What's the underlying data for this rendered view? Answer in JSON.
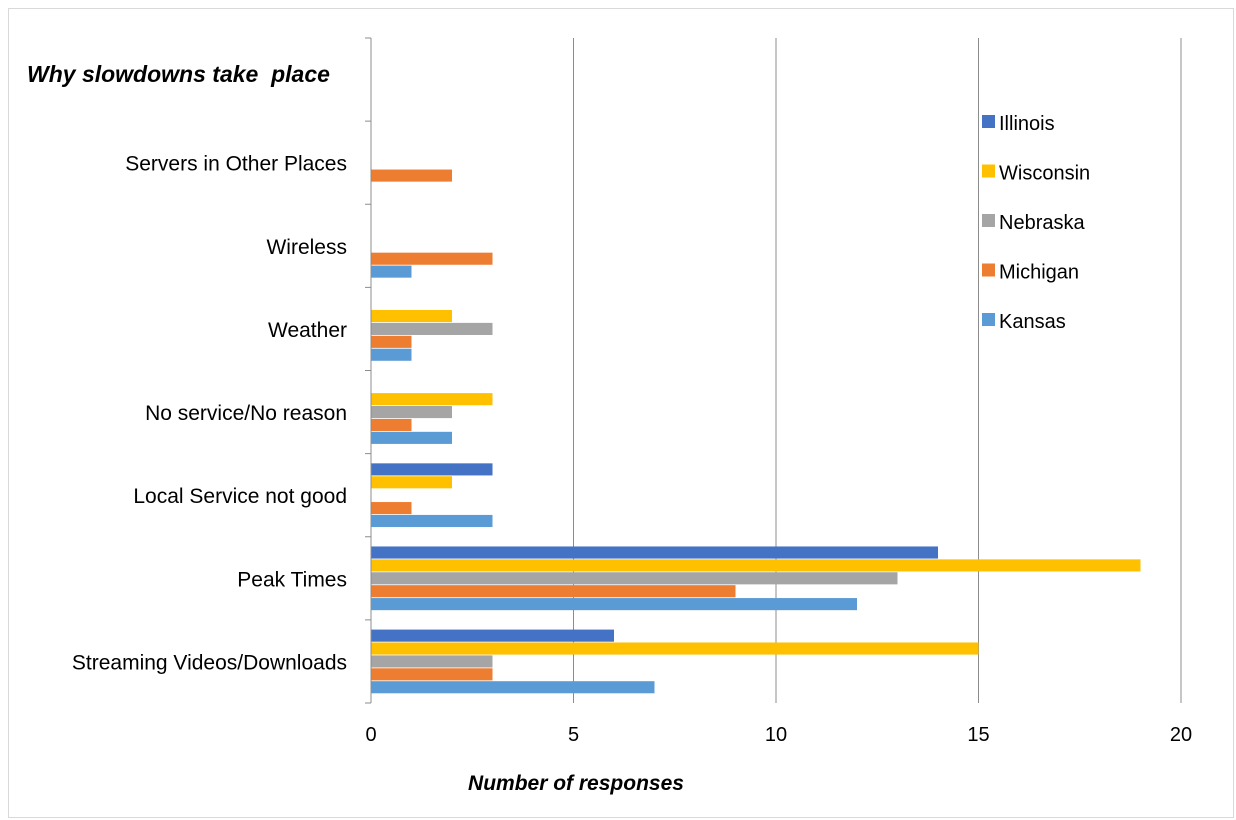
{
  "chart_data": {
    "type": "bar",
    "orientation": "horizontal",
    "title": "Why slowdowns take  place",
    "xlabel": "Number of responses",
    "ylabel": "",
    "xlim": [
      0,
      20
    ],
    "x_ticks": [
      "0",
      "5",
      "10",
      "15",
      "20"
    ],
    "grid": "vertical major gridlines",
    "legend_position": "right",
    "categories": [
      "Streaming Videos/Downloads",
      "Peak Times",
      "Local Service not good",
      "No service/No reason",
      "Weather",
      "Wireless",
      "Servers in Other Places"
    ],
    "series": [
      {
        "name": "Kansas",
        "color": "#5B9BD5",
        "values": [
          7,
          12,
          3,
          2,
          1,
          1,
          0
        ]
      },
      {
        "name": "Michigan",
        "color": "#ED7D31",
        "values": [
          3,
          9,
          1,
          1,
          1,
          3,
          2
        ]
      },
      {
        "name": "Nebraska",
        "color": "#A5A5A5",
        "values": [
          3,
          13,
          0,
          2,
          3,
          0,
          0
        ]
      },
      {
        "name": "Wisconsin",
        "color": "#FFC000",
        "values": [
          15,
          19,
          2,
          3,
          2,
          0,
          0
        ]
      },
      {
        "name": "Illinois",
        "color": "#4472C4",
        "values": [
          6,
          14,
          3,
          0,
          0,
          0,
          0
        ]
      }
    ],
    "legend_order": [
      "Illinois",
      "Wisconsin",
      "Nebraska",
      "Michigan",
      "Kansas"
    ]
  }
}
